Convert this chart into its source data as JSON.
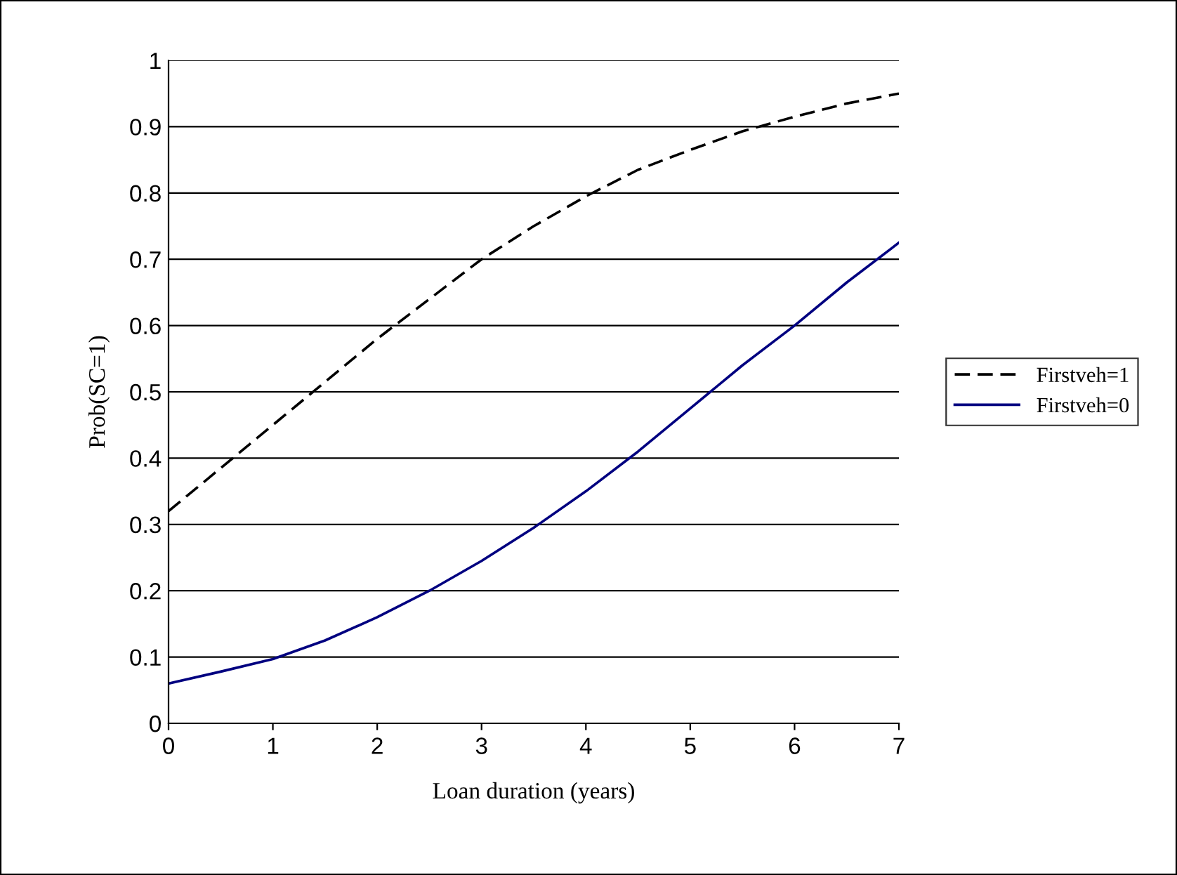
{
  "chart_data": {
    "type": "line",
    "xlabel": "Loan duration (years)",
    "ylabel": "Prob(SC=1)",
    "x": [
      0,
      0.5,
      1,
      1.5,
      2,
      2.5,
      3,
      3.5,
      4,
      4.5,
      5,
      5.5,
      6,
      6.5,
      7
    ],
    "series": [
      {
        "name": "Firstveh=1",
        "color": "#000000",
        "line_style": "dashed",
        "values": [
          0.32,
          0.385,
          0.45,
          0.515,
          0.58,
          0.64,
          0.7,
          0.75,
          0.795,
          0.835,
          0.865,
          0.893,
          0.915,
          0.935,
          0.95
        ]
      },
      {
        "name": "Firstveh=0",
        "color": "#000080",
        "line_style": "solid",
        "values": [
          0.06,
          0.078,
          0.097,
          0.125,
          0.16,
          0.2,
          0.245,
          0.295,
          0.35,
          0.41,
          0.475,
          0.54,
          0.6,
          0.665,
          0.725
        ]
      }
    ],
    "xlim": [
      0,
      7
    ],
    "xticks": [
      0,
      1,
      2,
      3,
      4,
      5,
      6,
      7
    ],
    "ylim": [
      0,
      1
    ],
    "yticks": [
      0,
      0.1,
      0.2,
      0.3,
      0.4,
      0.5,
      0.6,
      0.7,
      0.8,
      0.9,
      1
    ],
    "grid": "y",
    "legend": "right",
    "marker": "none"
  }
}
